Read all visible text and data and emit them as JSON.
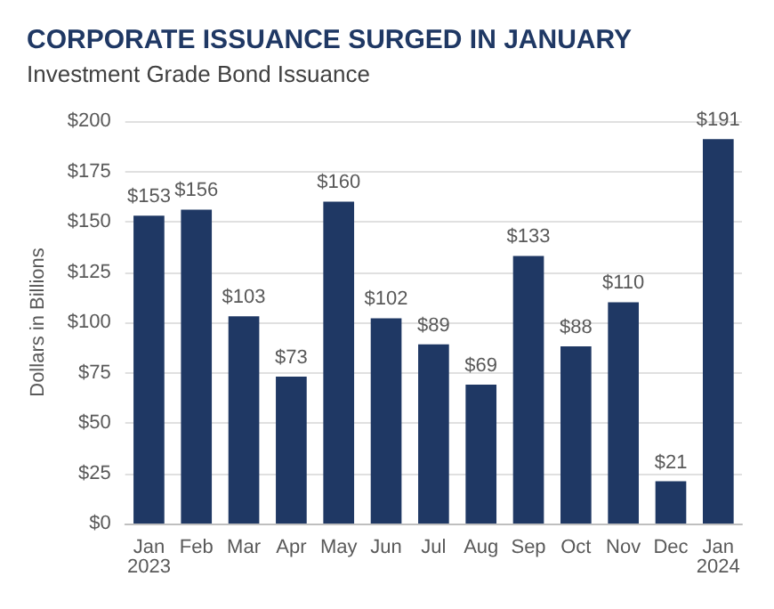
{
  "chart_data": {
    "type": "bar",
    "title": "CORPORATE ISSUANCE SURGED IN JANUARY",
    "subtitle": "Investment Grade Bond Issuance",
    "ylabel": "Dollars in Billions",
    "categories": [
      "Jan\n2023",
      "Feb",
      "Mar",
      "Apr",
      "May",
      "Jun",
      "Jul",
      "Aug",
      "Sep",
      "Oct",
      "Nov",
      "Dec",
      "Jan\n2024"
    ],
    "values": [
      153,
      156,
      103,
      73,
      160,
      102,
      89,
      69,
      133,
      88,
      110,
      21,
      191
    ],
    "value_labels": [
      "$153",
      "$156",
      "$103",
      "$73",
      "$160",
      "$102",
      "$89",
      "$69",
      "$133",
      "$88",
      "$110",
      "$21",
      "$191"
    ],
    "color": "#1f3864",
    "ylim": [
      0,
      200
    ],
    "yticks": [
      {
        "value": 0,
        "label": "$0"
      },
      {
        "value": 25,
        "label": "$25"
      },
      {
        "value": 50,
        "label": "$50"
      },
      {
        "value": 75,
        "label": "$75"
      },
      {
        "value": 100,
        "label": "$100"
      },
      {
        "value": 125,
        "label": "$125"
      },
      {
        "value": 150,
        "label": "$150"
      },
      {
        "value": 175,
        "label": "$175"
      },
      {
        "value": 200,
        "label": "$200"
      }
    ],
    "grid": "y"
  }
}
